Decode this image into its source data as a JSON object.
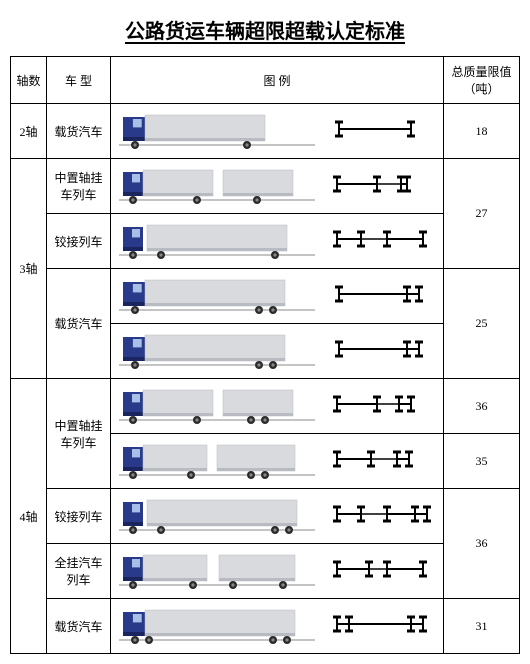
{
  "title": "公路货运车辆超限超载认定标准",
  "headers": {
    "axle_count": "轴数",
    "vehicle_type": "车 型",
    "illustration": "图 例",
    "weight_limit": "总质量限值\n（吨）"
  },
  "colors": {
    "cab": "#2a3a8a",
    "cab_shadow": "#1a2560",
    "box": "#d8dadd",
    "box_shadow": "#b8bcc2",
    "wheel": "#2b2b2b",
    "ground": "#888",
    "axle_line": "#000"
  },
  "groups": [
    {
      "axle_label": "2轴",
      "rows": [
        {
          "type": "载货汽车",
          "truck": "rigid_2a",
          "axle": "ax_1_1",
          "limit": "18",
          "group_span": 1,
          "limit_span": 1
        }
      ]
    },
    {
      "axle_label": "3轴",
      "rows": [
        {
          "type": "中置轴挂车列车",
          "truck": "center_trailer_3a",
          "axle": "ax_2p1",
          "type_span": 1,
          "limit": "27",
          "limit_span": 2
        },
        {
          "type": "铰接列车",
          "truck": "semi_3a",
          "axle": "ax_1_1_1",
          "type_span": 1
        },
        {
          "type": "载货汽车",
          "truck": "rigid_3a_a",
          "axle": "ax_1_2",
          "type_span": 2,
          "limit": "25",
          "limit_span": 2
        },
        {
          "truck": "rigid_3a_b",
          "axle": "ax_1_2b"
        }
      ]
    },
    {
      "axle_label": "4轴",
      "rows": [
        {
          "type": "中置轴挂车列车",
          "truck": "center_trailer_4a_a",
          "axle": "ax_2p2",
          "type_span": 2,
          "limit": "36",
          "limit_span": 1
        },
        {
          "truck": "center_trailer_4a_b",
          "axle": "ax_1_1p2",
          "limit": "35",
          "limit_span": 1
        },
        {
          "type": "铰接列车",
          "truck": "semi_4a",
          "axle": "ax_1_1_2",
          "type_span": 1,
          "limit": "36",
          "limit_span": 2
        },
        {
          "type": "全挂汽车列车",
          "truck": "full_trailer_4a",
          "axle": "ax_11_11",
          "type_span": 1
        },
        {
          "type": "载货汽车",
          "truck": "rigid_4a",
          "axle": "ax_2_2",
          "type_span": 1,
          "limit": "31",
          "limit_span": 1
        }
      ]
    }
  ]
}
